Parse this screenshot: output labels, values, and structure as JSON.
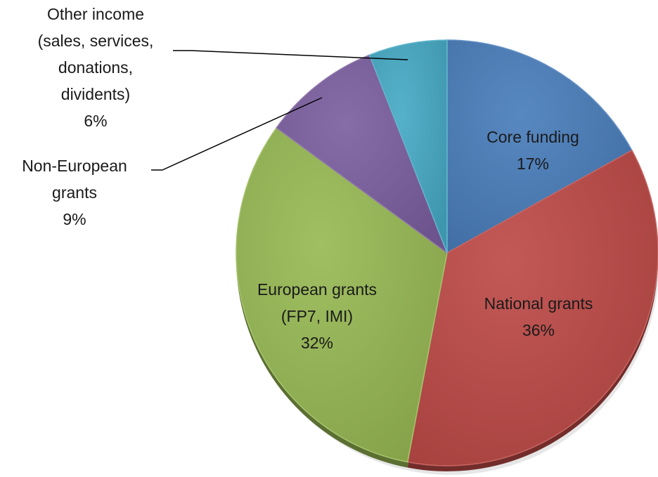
{
  "chart_data": {
    "type": "pie",
    "series": [
      {
        "categories": [
          "Core funding",
          "National grants",
          "European grants (FP7, IMI)",
          "Non-European grants",
          "Other income (sales, services, donations, dividents)"
        ],
        "values": [
          17,
          36,
          32,
          9,
          6
        ]
      }
    ],
    "slices": [
      {
        "label_lines": [
          "Core funding",
          "17%"
        ],
        "percent": 17,
        "color": "#4a7ebb",
        "label_color": "#1a1a1a",
        "label_placement": "inside"
      },
      {
        "label_lines": [
          "National grants",
          "36%"
        ],
        "percent": 36,
        "color": "#be4b48",
        "label_color": "#1a1a1a",
        "label_placement": "inside"
      },
      {
        "label_lines": [
          "European grants",
          "(FP7, IMI)",
          "32%"
        ],
        "percent": 32,
        "color": "#98b954",
        "label_color": "#1a1a1a",
        "label_placement": "inside"
      },
      {
        "label_lines": [
          "Non-European",
          "grants",
          "9%"
        ],
        "percent": 9,
        "color": "#7d60a0",
        "label_color": "#1a1a1a",
        "label_placement": "outside with leader line"
      },
      {
        "label_lines": [
          "Other income",
          "(sales, services,",
          "donations,",
          "dividents)",
          "6%"
        ],
        "percent": 6,
        "color": "#46aac5",
        "label_color": "#1a1a1a",
        "label_placement": "outside with leader line"
      }
    ],
    "start": "12 o'clock",
    "direction": "clockwise",
    "legend": "none",
    "title": ""
  }
}
